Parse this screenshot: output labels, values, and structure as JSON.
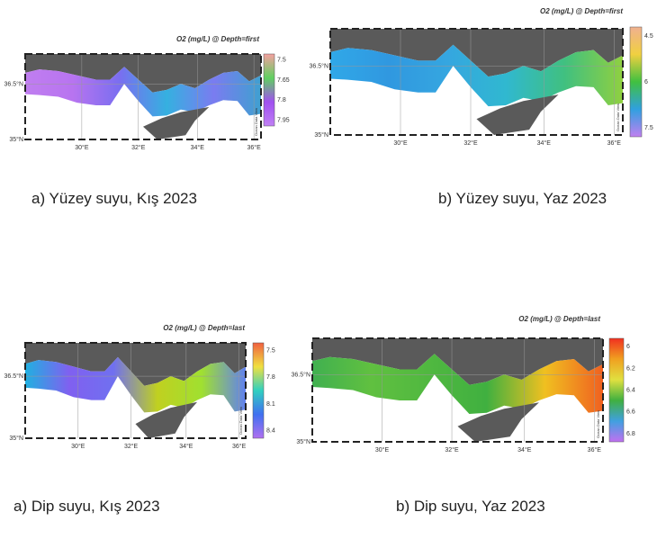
{
  "panels": [
    {
      "title": "O2 (mg/L) @ Depth=first",
      "lat_labels": [
        "36.5°N",
        "35°N"
      ],
      "lon_labels": [
        "30°E",
        "32°E",
        "34°E",
        "36°E"
      ],
      "colorbar_ticks": [
        "7.5",
        "7.65",
        "7.8",
        "7.95"
      ],
      "credit": "Ocean Data View",
      "caption": "a)  Yüzey suyu, Kış 2023"
    },
    {
      "title": "O2 (mg/L) @ Depth=first",
      "lat_labels": [
        "36.5°N",
        "35°N"
      ],
      "lon_labels": [
        "30°E",
        "32°E",
        "34°E",
        "36°E"
      ],
      "colorbar_ticks": [
        "4.5",
        "6",
        "7.5"
      ],
      "credit": "Ocean Data View",
      "caption": "b) Yüzey suyu, Yaz 2023"
    },
    {
      "title": "O2 (mg/L) @ Depth=last",
      "lat_labels": [
        "36.5°N",
        "35°N"
      ],
      "lon_labels": [
        "30°E",
        "32°E",
        "34°E",
        "36°E"
      ],
      "colorbar_ticks": [
        "7.5",
        "7.8",
        "8.1",
        "8.4"
      ],
      "credit": "Ocean Data View",
      "caption": "a)  Dip suyu, Kış 2023"
    },
    {
      "title": "O2 (mg/L) @ Depth=last",
      "lat_labels": [
        "36.5°N",
        "35°N"
      ],
      "lon_labels": [
        "30°E",
        "32°E",
        "34°E",
        "36°E"
      ],
      "colorbar_ticks": [
        "6",
        "6.2",
        "6.4",
        "6.6",
        "6.8"
      ],
      "credit": "Ocean Data View",
      "caption": "b) Dip suyu, Yaz 2023"
    }
  ]
}
